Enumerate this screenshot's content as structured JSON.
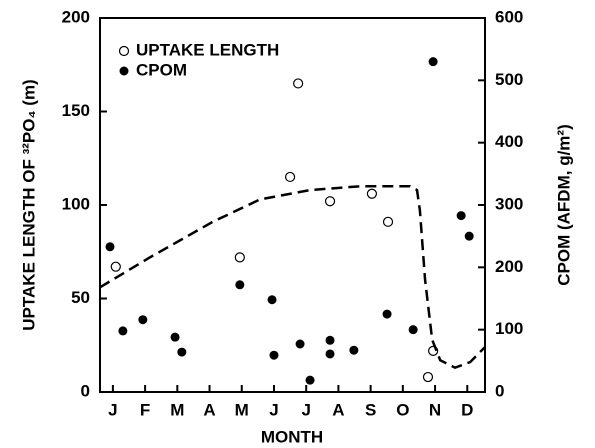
{
  "chart_data": {
    "type": "scatter",
    "xlabel": "MONTH",
    "ylabel": "UPTAKE LENGTH OF ³²PO₄ (m)",
    "y2label": "CPOM (AFDM, g/m²)",
    "xlim": [
      -0.4,
      11.55
    ],
    "xticks": [
      {
        "value": 0,
        "label": "J"
      },
      {
        "value": 1,
        "label": "F"
      },
      {
        "value": 2,
        "label": "M"
      },
      {
        "value": 3,
        "label": "A"
      },
      {
        "value": 4,
        "label": "M"
      },
      {
        "value": 5,
        "label": "J"
      },
      {
        "value": 6,
        "label": "J"
      },
      {
        "value": 7,
        "label": "A"
      },
      {
        "value": 8,
        "label": "S"
      },
      {
        "value": 9,
        "label": "O"
      },
      {
        "value": 10,
        "label": "N"
      },
      {
        "value": 11,
        "label": "D"
      }
    ],
    "ylim": [
      0,
      200
    ],
    "yticks": [
      0,
      50,
      100,
      150,
      200
    ],
    "y2lim": [
      0,
      600
    ],
    "y2ticks": [
      0,
      100,
      200,
      300,
      400,
      500,
      600
    ],
    "legend": "upper left",
    "series": [
      {
        "name": "UPTAKE LENGTH",
        "marker": "open",
        "color": "#000000",
        "x": [
          0.09,
          3.94,
          5.5,
          5.75,
          6.74,
          8.04,
          8.54,
          9.78,
          9.94
        ],
        "values": [
          67,
          72,
          115,
          165,
          102,
          106,
          91,
          8,
          22
        ]
      },
      {
        "name": "CPOM",
        "marker": "filled",
        "color": "#000000",
        "axis": "y2",
        "x": [
          -0.09,
          0.31,
          0.93,
          1.93,
          2.14,
          3.94,
          4.94,
          5.0,
          5.81,
          6.12,
          6.74,
          6.74,
          7.48,
          8.51,
          9.32,
          9.94,
          10.81,
          11.06
        ],
        "values": [
          233,
          98,
          116,
          88,
          64,
          172,
          148,
          59,
          77,
          19,
          83,
          61,
          67,
          125,
          100,
          530,
          283,
          250
        ]
      },
      {
        "type": "line",
        "linestyle": "dashed",
        "color": "#000000",
        "x": [
          -0.4,
          1.15,
          3.1,
          4.57,
          6.12,
          7.67,
          9.22,
          9.44,
          9.53,
          9.69,
          9.91,
          10.16,
          10.62,
          11.09,
          11.55
        ],
        "values": [
          56,
          72,
          91,
          103,
          108,
          110,
          110,
          108,
          97,
          60,
          28,
          17,
          13,
          16,
          24
        ]
      }
    ]
  }
}
